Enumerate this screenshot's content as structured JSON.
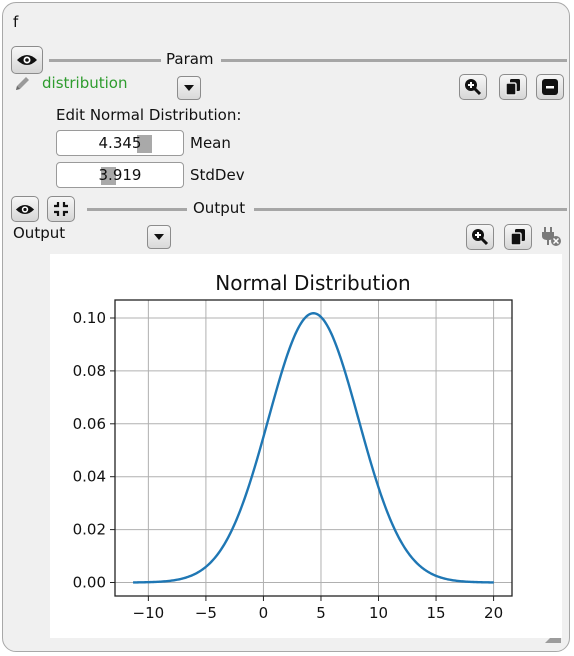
{
  "node": {
    "title": "f"
  },
  "param": {
    "section_title": "Param",
    "name_label": "distribution",
    "edit_label": "Edit Normal Distribution:",
    "mean": {
      "value": "4.345",
      "label": "Mean",
      "slider_fraction": 0.55
    },
    "stddev": {
      "value": "3.919",
      "label": "StdDev",
      "slider_fraction": 0.3
    }
  },
  "output": {
    "section_title": "Output",
    "name_label": "Output"
  },
  "colors": {
    "param_label": "#2e9c2e",
    "curve": "#1f77b4",
    "grid": "#b0b0b0"
  },
  "icons": [
    "eye-icon",
    "pencil-icon",
    "chevron-down-icon",
    "zoom-in-icon",
    "copy-icon",
    "minimize-icon",
    "collapse-icon",
    "plug-remove-icon",
    "resize-grip-icon"
  ],
  "chart_data": {
    "type": "line",
    "title": "Normal Distribution",
    "xlabel": "",
    "ylabel": "",
    "distribution": {
      "mean": 4.345,
      "stddev": 3.919
    },
    "x_range": [
      -11.33,
      20.02
    ],
    "xlim": [
      -12.9,
      21.6
    ],
    "ylim": [
      -0.0051,
      0.1068
    ],
    "xticks": [
      -10,
      -5,
      0,
      5,
      10,
      15,
      20
    ],
    "xtick_labels": [
      "−10",
      "−5",
      "0",
      "5",
      "10",
      "15",
      "20"
    ],
    "yticks": [
      0,
      0.02,
      0.04,
      0.06,
      0.08,
      0.1
    ],
    "ytick_labels": [
      "0.00",
      "0.02",
      "0.04",
      "0.06",
      "0.08",
      "0.10"
    ],
    "grid": true,
    "x": [
      -11.33,
      -10,
      -8,
      -6,
      -4,
      -2,
      0,
      2,
      4,
      4.345,
      6,
      8,
      10,
      12,
      14,
      16,
      18,
      20.02
    ],
    "y": [
      0.0003,
      0.0012,
      0.0071,
      0.0031,
      0.0106,
      0.0272,
      0.0592,
      0.0853,
      0.1014,
      0.1018,
      0.0935,
      0.0687,
      0.0396,
      0.0152,
      0.0047,
      0.0011,
      0.0002,
      0.0003
    ]
  }
}
